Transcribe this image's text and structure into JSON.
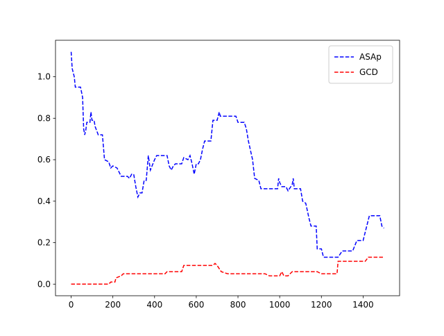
{
  "chart_data": {
    "type": "line",
    "series": [
      {
        "name": "ASAp",
        "color": "#0000ff",
        "x": [
          0,
          5,
          15,
          20,
          45,
          55,
          60,
          65,
          70,
          75,
          90,
          95,
          100,
          110,
          115,
          130,
          150,
          160,
          180,
          190,
          200,
          220,
          240,
          270,
          280,
          290,
          300,
          310,
          320,
          330,
          340,
          350,
          360,
          370,
          380,
          400,
          410,
          460,
          470,
          480,
          490,
          500,
          530,
          540,
          560,
          570,
          580,
          590,
          600,
          610,
          620,
          630,
          640,
          670,
          680,
          700,
          710,
          715,
          790,
          800,
          830,
          840,
          850,
          870,
          880,
          900,
          910,
          990,
          995,
          1000,
          1010,
          1030,
          1040,
          1060,
          1065,
          1070,
          1100,
          1110,
          1125,
          1140,
          1150,
          1175,
          1180,
          1200,
          1210,
          1280,
          1300,
          1350,
          1370,
          1400,
          1410,
          1430,
          1480,
          1490,
          1500
        ],
        "values": [
          1.12,
          1.04,
          1.0,
          0.95,
          0.95,
          0.9,
          0.75,
          0.72,
          0.74,
          0.78,
          0.78,
          0.83,
          0.79,
          0.79,
          0.76,
          0.72,
          0.72,
          0.6,
          0.59,
          0.56,
          0.57,
          0.56,
          0.52,
          0.52,
          0.51,
          0.53,
          0.53,
          0.47,
          0.42,
          0.44,
          0.44,
          0.5,
          0.5,
          0.62,
          0.55,
          0.6,
          0.62,
          0.62,
          0.57,
          0.55,
          0.57,
          0.58,
          0.58,
          0.61,
          0.6,
          0.62,
          0.58,
          0.53,
          0.58,
          0.58,
          0.6,
          0.65,
          0.69,
          0.69,
          0.79,
          0.79,
          0.83,
          0.81,
          0.81,
          0.78,
          0.78,
          0.75,
          0.69,
          0.6,
          0.51,
          0.5,
          0.46,
          0.46,
          0.51,
          0.49,
          0.47,
          0.47,
          0.45,
          0.48,
          0.51,
          0.46,
          0.46,
          0.4,
          0.39,
          0.32,
          0.28,
          0.28,
          0.17,
          0.17,
          0.13,
          0.13,
          0.16,
          0.16,
          0.21,
          0.21,
          0.25,
          0.33,
          0.33,
          0.28,
          0.27
        ]
      },
      {
        "name": "GCD",
        "color": "#ff0000",
        "x": [
          0,
          180,
          190,
          210,
          215,
          240,
          250,
          450,
          460,
          530,
          540,
          680,
          690,
          700,
          720,
          750,
          930,
          950,
          1000,
          1010,
          1020,
          1040,
          1060,
          1180,
          1200,
          1275,
          1280,
          1410,
          1425,
          1500
        ],
        "values": [
          0,
          0,
          0.01,
          0.01,
          0.03,
          0.04,
          0.05,
          0.05,
          0.06,
          0.06,
          0.09,
          0.09,
          0.1,
          0.09,
          0.06,
          0.05,
          0.05,
          0.04,
          0.04,
          0.06,
          0.04,
          0.04,
          0.06,
          0.06,
          0.05,
          0.05,
          0.11,
          0.11,
          0.13,
          0.13
        ]
      }
    ],
    "xlim": [
      -75,
      1575
    ],
    "xticks": [
      0,
      200,
      400,
      600,
      800,
      1000,
      1200,
      1400
    ],
    "ylim": [
      -0.056,
      1.176
    ],
    "yticks": [
      {
        "value": 0,
        "label": "0.0"
      },
      0.2,
      0.4,
      0.6,
      0.8,
      {
        "value": 1,
        "label": "1.0"
      }
    ],
    "legend": "upper right",
    "grid": false
  }
}
